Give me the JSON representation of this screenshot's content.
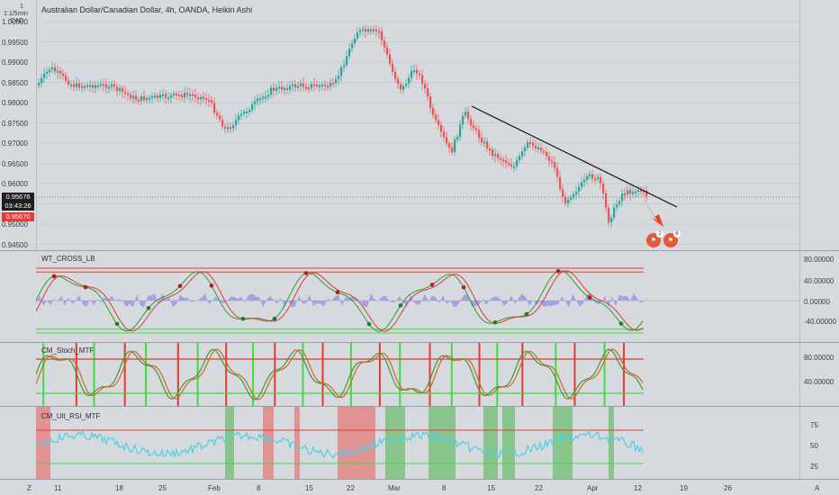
{
  "main": {
    "title": "Australian Dollar/Canadian Dollar, 4h, OANDA, Heikin Ashi",
    "unit_top": "1 1:1/5min",
    "unit_bottom": "CAD",
    "y_ticks": [
      "1.00000",
      "0.99500",
      "0.99000",
      "0.98500",
      "0.98000",
      "0.97500",
      "0.97000",
      "0.96500",
      "0.96000",
      "0.95500",
      "0.95000",
      "0.94500"
    ],
    "price_current": "0.95676",
    "countdown": "03:43:26",
    "price_red": "0.95670",
    "event_count_1": "2",
    "event_count_2": "6"
  },
  "wt": {
    "title": "WT_CROSS_LB",
    "y_ticks": [
      "80.00000",
      "40.00000",
      "0.00000",
      "-40.00000"
    ]
  },
  "stoch": {
    "title": "CM_Stoch_MTF",
    "y_ticks": [
      "80.00000",
      "40.00000"
    ]
  },
  "rsi": {
    "title": "CM_Ult_RSI_MTF",
    "y_ticks": [
      "75",
      "50",
      "25"
    ]
  },
  "x_axis": {
    "labels": [
      "11",
      "18",
      "25",
      "Feb",
      "8",
      "15",
      "22",
      "Mar",
      "8",
      "15",
      "22",
      "Apr",
      "12",
      "19",
      "26"
    ],
    "left_corner": "Z",
    "right_corner": "A"
  },
  "colors": {
    "up": "#26a69a",
    "down": "#ef5350",
    "background": "#d6d9de",
    "red_level": "#e53935",
    "green_level": "#43d943",
    "rsi_line": "#4dd0e1"
  }
}
